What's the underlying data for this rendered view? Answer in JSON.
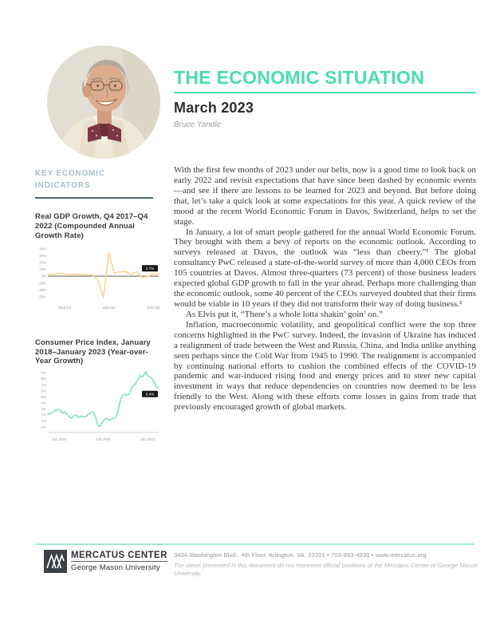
{
  "masthead": {
    "title": "THE ECONOMIC SITUATION",
    "issue_date": "March 2023",
    "author": "Bruce Yandle"
  },
  "sidebar": {
    "heading": "KEY ECONOMIC INDICATORS"
  },
  "chart_data": [
    {
      "type": "line",
      "title": "Real GDP Growth, Q4 2017–Q4 2022 (Compounded Annual Growth Rate)",
      "x_start": "2017 Q4",
      "x_end": "2022 Q4",
      "frequency": "quarterly",
      "values": [
        2.3,
        2.2,
        4.2,
        3.4,
        2.2,
        3.1,
        2.0,
        2.1,
        2.1,
        -5.1,
        -31.2,
        33.8,
        4.5,
        6.3,
        6.7,
        2.3,
        6.9,
        -1.6,
        -0.6,
        3.2,
        2.7
      ],
      "ylim": [
        -30,
        40
      ],
      "yticks": [
        40,
        30,
        20,
        10,
        0,
        -10,
        -20,
        -30
      ],
      "ytick_suffix": "%",
      "x_ticks": [
        {
          "index": 3,
          "label": "2018 Q3"
        },
        {
          "index": 11,
          "label": "2020 Q3"
        },
        {
          "index": 19,
          "label": "2022 Q3"
        }
      ],
      "end_label": "2.7%",
      "line_color": "#F7D795",
      "grid": false,
      "legend": "none"
    },
    {
      "type": "line",
      "title": "Consumer Price Index, January 2018–January 2023 (Year-over-Year Growth)",
      "x_start": "January 2018",
      "x_end": "January 2023",
      "frequency": "monthly",
      "values": [
        2.1,
        2.2,
        2.4,
        2.5,
        2.8,
        2.9,
        2.9,
        2.7,
        2.3,
        2.5,
        2.2,
        1.9,
        1.6,
        1.5,
        1.9,
        2.0,
        1.8,
        1.6,
        1.8,
        1.7,
        1.7,
        1.8,
        2.1,
        2.3,
        2.5,
        2.3,
        1.5,
        0.3,
        0.1,
        0.6,
        1.0,
        1.3,
        1.4,
        1.2,
        1.2,
        1.4,
        1.4,
        1.7,
        2.6,
        4.2,
        5.0,
        5.4,
        5.4,
        5.3,
        5.4,
        6.2,
        6.8,
        7.0,
        7.5,
        7.9,
        8.5,
        8.3,
        8.6,
        9.1,
        8.5,
        8.3,
        8.2,
        7.7,
        7.1,
        6.5,
        6.4
      ],
      "ylim": [
        0,
        9
      ],
      "yticks": [
        9,
        8,
        7,
        6,
        5,
        4,
        3,
        2,
        1,
        0
      ],
      "ytick_suffix": "%",
      "x_ticks": [
        {
          "index": 6,
          "label": "July 2018"
        },
        {
          "index": 30,
          "label": "July 2020"
        },
        {
          "index": 54,
          "label": "July 2022"
        }
      ],
      "end_label": "6.4%",
      "line_color": "#85E4C6",
      "grid": false,
      "legend": "none"
    }
  ],
  "body": {
    "paragraphs": [
      {
        "text": "With the first few months of 2023 under our belts, now is a good time to look back on early 2022 and revisit expectations that have since been dashed by economic events—and see if there are lessons to be learned for 2023 and beyond. But before doing that, let’s take a quick look at some expectations for this year. A quick review of the mood at the recent World Economic Forum in Davos, Switzerland, helps to set the stage."
      },
      {
        "text": "In January, a lot of smart people gathered for the annual World Economic Forum. They brought with them a bevy of reports on the economic outlook. According to surveys released at Davos, the outlook was “less than cheery.”¹ The global consultancy PwC released a state-of-the-world survey of more than 4,000 CEOs from 105 countries at Davos. Almost three-quarters (73 percent) of those business leaders expected global GDP growth to fall in the year ahead. Perhaps more challenging than the economic outlook, some 40 percent of the CEOs surveyed doubted that their firms would be viable in 10 years if they did not transform their way of doing business.²"
      },
      {
        "text": "As Elvis put it, “There’s a whole lotta shakin’ goin’ on.”"
      },
      {
        "text": "Inflation, macroeconomic volatility, and geopolitical conflict were the top three concerns highlighted in the PwC survey. Indeed, the invasion of Ukraine has induced a realignment of trade between the West and Russia, China, and India unlike anything seen perhaps since the Cold War from 1945 to 1990. The realignment is accompanied by continuing national efforts to cushion the combined effects of the COVID-19 pandemic and war-induced rising food and energy prices and to steer new capital investment in ways that reduce dependencies on countries now deemed to be less friendly to the West. Along with these efforts come losses in gains from trade that previously encouraged growth of global markets."
      }
    ]
  },
  "footer": {
    "logo": {
      "org": "MERCATUS CENTER",
      "university": "George Mason University"
    },
    "address_line": "3434 Washington Blvd., 4th Floor, Arlington, VA, 22201 • 703-993-4930 • www.mercatus.org",
    "disclaimer": "The views presented in this document do not represent official positions of the Mercatus Center or George Mason University."
  },
  "colors": {
    "accent_teal": "#4BDBB2",
    "footer_rule_teal": "#9FE9D1",
    "sidebar_heading": "#A9BEC9",
    "sidebar_rule": "#4D6A76",
    "gdp_line": "#F7D795",
    "cpi_line": "#85E4C6",
    "data_label_bg": "#1a1a1a"
  }
}
